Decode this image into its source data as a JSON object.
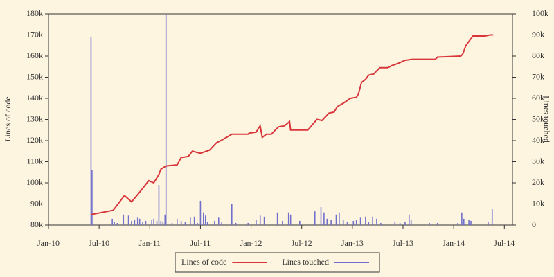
{
  "chart_data": {
    "type": "line",
    "y_label": "Lines of code",
    "y2_label": "Lines touched",
    "xlim": [
      2010,
      2014.58
    ],
    "xticks": [
      {
        "value": 2010,
        "label": "Jan-10"
      },
      {
        "value": 2010.5,
        "label": "Jul-10"
      },
      {
        "value": 2011,
        "label": "Jan-11"
      },
      {
        "value": 2011.5,
        "label": "Jul-11"
      },
      {
        "value": 2012,
        "label": "Jan-12"
      },
      {
        "value": 2012.5,
        "label": "Jul-12"
      },
      {
        "value": 2013,
        "label": "Jan-13"
      },
      {
        "value": 2013.5,
        "label": "Jul-13"
      },
      {
        "value": 2014,
        "label": "Jan-14"
      },
      {
        "value": 2014.5,
        "label": "Jul-14"
      }
    ],
    "ylim": [
      80000,
      180000
    ],
    "yticks": [
      {
        "value": 80000,
        "label": "80k"
      },
      {
        "value": 90000,
        "label": "90k"
      },
      {
        "value": 100000,
        "label": "100k"
      },
      {
        "value": 110000,
        "label": "110k"
      },
      {
        "value": 120000,
        "label": "120k"
      },
      {
        "value": 130000,
        "label": "130k"
      },
      {
        "value": 140000,
        "label": "140k"
      },
      {
        "value": 150000,
        "label": "150k"
      },
      {
        "value": 160000,
        "label": "160k"
      },
      {
        "value": 170000,
        "label": "170k"
      },
      {
        "value": 180000,
        "label": "180k"
      }
    ],
    "y2lim": [
      0,
      100000
    ],
    "y2ticks": [
      0,
      {
        "value": 10000,
        "label": "10k"
      },
      {
        "value": 20000,
        "label": "20k"
      },
      {
        "value": 30000,
        "label": "30k"
      },
      {
        "value": 40000,
        "label": "40k"
      },
      {
        "value": 50000,
        "label": "50k"
      },
      {
        "value": 60000,
        "label": "60k"
      },
      {
        "value": 70000,
        "label": "70k"
      },
      {
        "value": 80000,
        "label": "80k"
      },
      {
        "value": 90000,
        "label": "90k"
      },
      {
        "value": 100000,
        "label": "100k"
      }
    ],
    "series": [
      {
        "name": "Lines of code",
        "color": "#d9363b",
        "type": "line",
        "x": [
          2010.42,
          2010.64,
          2010.75,
          2010.82,
          2010.89,
          2010.99,
          2011.04,
          2011.09,
          2011.11,
          2011.16,
          2011.27,
          2011.31,
          2011.38,
          2011.42,
          2011.5,
          2011.59,
          2011.66,
          2011.72,
          2011.81,
          2011.97,
          2011.98,
          2012.05,
          2012.09,
          2012.11,
          2012.15,
          2012.2,
          2012.27,
          2012.33,
          2012.38,
          2012.39,
          2012.56,
          2012.65,
          2012.7,
          2012.77,
          2012.82,
          2012.85,
          2012.92,
          2012.98,
          2013.04,
          2013.06,
          2013.09,
          2013.13,
          2013.16,
          2013.21,
          2013.27,
          2013.35,
          2013.39,
          2013.45,
          2013.52,
          2013.59,
          2013.82,
          2013.84,
          2014.07,
          2014.09,
          2014.12,
          2014.19,
          2014.31,
          2014.36,
          2014.39
        ],
        "values": [
          85000,
          87000,
          94000,
          91000,
          95000,
          101000,
          100000,
          104000,
          106500,
          108000,
          108500,
          112000,
          112500,
          115000,
          114000,
          115500,
          119000,
          120500,
          123000,
          123000,
          123500,
          124000,
          127000,
          121500,
          123000,
          123000,
          126500,
          127000,
          129000,
          125000,
          125000,
          130000,
          129500,
          133000,
          133500,
          136000,
          138000,
          140000,
          140500,
          142000,
          147500,
          149000,
          151000,
          151500,
          154500,
          154500,
          155500,
          156500,
          158000,
          158500,
          158500,
          159500,
          160000,
          161000,
          165000,
          169500,
          169500,
          170000,
          170000
        ]
      },
      {
        "name": "Lines touched",
        "color": "#7070cc",
        "type": "bar",
        "axis": "y2",
        "x": [
          2010.42,
          2010.43,
          2010.63,
          2010.65,
          2010.68,
          2010.74,
          2010.79,
          2010.82,
          2010.85,
          2010.88,
          2010.9,
          2010.93,
          2010.96,
          2011.02,
          2011.04,
          2011.07,
          2011.09,
          2011.11,
          2011.13,
          2011.15,
          2011.16,
          2011.22,
          2011.27,
          2011.31,
          2011.35,
          2011.4,
          2011.44,
          2011.47,
          2011.5,
          2011.53,
          2011.55,
          2011.57,
          2011.64,
          2011.68,
          2011.71,
          2011.81,
          2011.85,
          2011.97,
          2012.05,
          2012.09,
          2012.13,
          2012.26,
          2012.31,
          2012.37,
          2012.39,
          2012.48,
          2012.63,
          2012.69,
          2012.72,
          2012.75,
          2012.79,
          2012.84,
          2012.87,
          2012.91,
          2012.95,
          2013.01,
          2013.04,
          2013.08,
          2013.13,
          2013.16,
          2013.2,
          2013.24,
          2013.28,
          2013.42,
          2013.47,
          2013.52,
          2013.56,
          2013.58,
          2013.76,
          2013.84,
          2014.04,
          2014.08,
          2014.1,
          2014.15,
          2014.17,
          2014.34,
          2014.38
        ],
        "values": [
          89000,
          26000,
          3000,
          1500,
          1000,
          5000,
          4500,
          2000,
          2500,
          3500,
          3000,
          1500,
          2000,
          2500,
          3000,
          2000,
          19000,
          2000,
          1500,
          5000,
          100000,
          1000,
          3000,
          2000,
          1500,
          3500,
          4000,
          1000,
          11500,
          6000,
          4500,
          1500,
          2000,
          3500,
          1500,
          10000,
          1000,
          1000,
          2500,
          4500,
          4000,
          6000,
          2000,
          6000,
          5000,
          2000,
          6500,
          8500,
          6000,
          3000,
          2500,
          5000,
          6000,
          2500,
          1500,
          2000,
          2500,
          3500,
          4000,
          1500,
          4000,
          3000,
          1000,
          1500,
          1000,
          1500,
          5000,
          2500,
          1000,
          1000,
          1000,
          6000,
          3000,
          2500,
          2000,
          1500,
          7500
        ]
      }
    ]
  }
}
